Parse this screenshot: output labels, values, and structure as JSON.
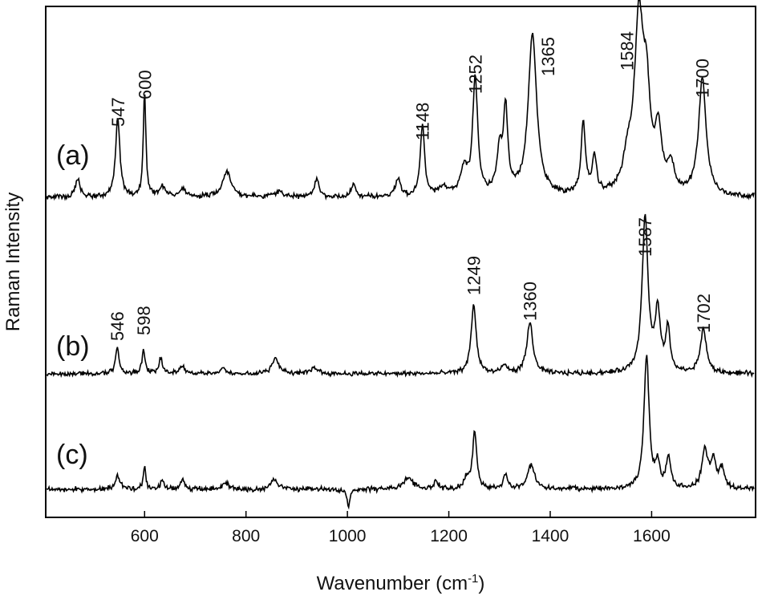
{
  "chart_data": {
    "type": "line",
    "xlabel": "Wavenumber (cm",
    "xlabel_superscript": "-1",
    "xlabel_suffix": ")",
    "ylabel": "Raman Intensity",
    "xlim": [
      405,
      1805
    ],
    "xticks": [
      600,
      800,
      1000,
      1200,
      1400,
      1600
    ],
    "yticks": [],
    "grid": false,
    "series": [
      {
        "name": "(a)",
        "baseline": 0,
        "peaks": [
          {
            "x": 468,
            "h": 0.07,
            "w": 5
          },
          {
            "x": 547,
            "h": 0.3,
            "w": 5
          },
          {
            "x": 600,
            "h": 0.4,
            "w": 3
          },
          {
            "x": 635,
            "h": 0.04,
            "w": 8
          },
          {
            "x": 675,
            "h": 0.03,
            "w": 6
          },
          {
            "x": 762,
            "h": 0.1,
            "w": 10
          },
          {
            "x": 865,
            "h": 0.02,
            "w": 10
          },
          {
            "x": 940,
            "h": 0.07,
            "w": 5
          },
          {
            "x": 1012,
            "h": 0.05,
            "w": 5
          },
          {
            "x": 1100,
            "h": 0.07,
            "w": 6
          },
          {
            "x": 1148,
            "h": 0.27,
            "w": 5
          },
          {
            "x": 1190,
            "h": 0.03,
            "w": 10
          },
          {
            "x": 1230,
            "h": 0.1,
            "w": 8
          },
          {
            "x": 1252,
            "h": 0.44,
            "w": 6
          },
          {
            "x": 1300,
            "h": 0.16,
            "w": 6
          },
          {
            "x": 1312,
            "h": 0.32,
            "w": 5
          },
          {
            "x": 1365,
            "h": 0.61,
            "w": 10
          },
          {
            "x": 1465,
            "h": 0.27,
            "w": 5
          },
          {
            "x": 1487,
            "h": 0.14,
            "w": 5
          },
          {
            "x": 1552,
            "h": 0.1,
            "w": 10
          },
          {
            "x": 1575,
            "h": 0.65,
            "w": 11
          },
          {
            "x": 1590,
            "h": 0.3,
            "w": 8
          },
          {
            "x": 1613,
            "h": 0.22,
            "w": 8
          },
          {
            "x": 1638,
            "h": 0.1,
            "w": 8
          },
          {
            "x": 1700,
            "h": 0.44,
            "w": 9
          }
        ],
        "noise": 0.012
      },
      {
        "name": "(b)",
        "baseline": 0,
        "peaks": [
          {
            "x": 546,
            "h": 0.17,
            "w": 4
          },
          {
            "x": 598,
            "h": 0.14,
            "w": 4
          },
          {
            "x": 632,
            "h": 0.1,
            "w": 4
          },
          {
            "x": 675,
            "h": 0.05,
            "w": 6
          },
          {
            "x": 755,
            "h": 0.04,
            "w": 6
          },
          {
            "x": 858,
            "h": 0.1,
            "w": 8
          },
          {
            "x": 935,
            "h": 0.04,
            "w": 8
          },
          {
            "x": 1249,
            "h": 0.43,
            "w": 6
          },
          {
            "x": 1310,
            "h": 0.05,
            "w": 6
          },
          {
            "x": 1360,
            "h": 0.32,
            "w": 7
          },
          {
            "x": 1587,
            "h": 0.97,
            "w": 7
          },
          {
            "x": 1612,
            "h": 0.37,
            "w": 6
          },
          {
            "x": 1632,
            "h": 0.27,
            "w": 5
          },
          {
            "x": 1702,
            "h": 0.28,
            "w": 7
          }
        ],
        "noise": 0.018
      },
      {
        "name": "(c)",
        "baseline": 0,
        "peaks": [
          {
            "x": 547,
            "h": 0.1,
            "w": 6
          },
          {
            "x": 600,
            "h": 0.16,
            "w": 3
          },
          {
            "x": 635,
            "h": 0.07,
            "w": 4
          },
          {
            "x": 675,
            "h": 0.07,
            "w": 4
          },
          {
            "x": 760,
            "h": 0.05,
            "w": 6
          },
          {
            "x": 855,
            "h": 0.07,
            "w": 8
          },
          {
            "x": 1002,
            "h": -0.14,
            "w": 3
          },
          {
            "x": 1120,
            "h": 0.09,
            "w": 10
          },
          {
            "x": 1175,
            "h": 0.06,
            "w": 5
          },
          {
            "x": 1235,
            "h": 0.07,
            "w": 6
          },
          {
            "x": 1251,
            "h": 0.41,
            "w": 5
          },
          {
            "x": 1312,
            "h": 0.1,
            "w": 5
          },
          {
            "x": 1362,
            "h": 0.18,
            "w": 8
          },
          {
            "x": 1590,
            "h": 0.97,
            "w": 6
          },
          {
            "x": 1612,
            "h": 0.17,
            "w": 5
          },
          {
            "x": 1633,
            "h": 0.23,
            "w": 5
          },
          {
            "x": 1705,
            "h": 0.27,
            "w": 7
          },
          {
            "x": 1722,
            "h": 0.2,
            "w": 6
          },
          {
            "x": 1738,
            "h": 0.14,
            "w": 6
          }
        ],
        "noise": 0.022
      }
    ],
    "annotations": [
      {
        "series": "(a)",
        "x": 547,
        "text": "547"
      },
      {
        "series": "(a)",
        "x": 600,
        "text": "600"
      },
      {
        "series": "(a)",
        "x": 1148,
        "text": "1148"
      },
      {
        "series": "(a)",
        "x": 1252,
        "text": "1252"
      },
      {
        "series": "(a)",
        "x": 1365,
        "text": "1365"
      },
      {
        "series": "(a)",
        "x": 1584,
        "text": "1584"
      },
      {
        "series": "(a)",
        "x": 1700,
        "text": "1700"
      },
      {
        "series": "(b)",
        "x": 546,
        "text": "546"
      },
      {
        "series": "(b)",
        "x": 598,
        "text": "598"
      },
      {
        "series": "(b)",
        "x": 1249,
        "text": "1249"
      },
      {
        "series": "(b)",
        "x": 1360,
        "text": "1360"
      },
      {
        "series": "(b)",
        "x": 1587,
        "text": "1587"
      },
      {
        "series": "(b)",
        "x": 1702,
        "text": "1702"
      }
    ],
    "line_color": "#000000"
  }
}
